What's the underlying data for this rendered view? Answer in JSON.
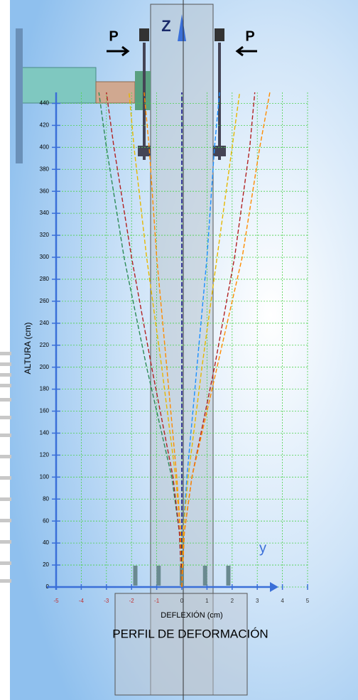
{
  "chart_data": {
    "type": "line",
    "title": "PERFIL DE DEFORMACIÓN",
    "xlabel": "DEFLEXIÓN (cm)",
    "ylabel": "ALTURA (cm)",
    "annotations": {
      "load_left": "P",
      "load_right": "P",
      "z_axis": "Z",
      "y_axis": "y"
    },
    "y": [
      0,
      50,
      100,
      200,
      300,
      400,
      450
    ],
    "series": [
      {
        "color": "#2e8b57",
        "values": [
          0,
          -0.1,
          -0.4,
          -1.4,
          -2.3,
          -3.0,
          -3.3
        ]
      },
      {
        "color": "#b22222",
        "values": [
          0,
          -0.1,
          -0.35,
          -1.2,
          -2.0,
          -2.7,
          -3.0
        ]
      },
      {
        "color": "#e6b800",
        "values": [
          0,
          -0.05,
          -0.25,
          -0.8,
          -1.4,
          -1.9,
          -2.1
        ]
      },
      {
        "color": "#ff8c00",
        "values": [
          0,
          -0.05,
          -0.2,
          -0.6,
          -1.0,
          -1.3,
          -1.5
        ]
      },
      {
        "color": "#000080",
        "values": [
          0,
          0,
          0,
          0,
          0,
          0,
          0
        ]
      },
      {
        "color": "#1e90ff",
        "values": [
          0,
          0.05,
          0.2,
          0.6,
          1.0,
          1.3,
          1.5
        ]
      },
      {
        "color": "#e6b800",
        "values": [
          0,
          0.05,
          0.25,
          0.8,
          1.4,
          2.0,
          2.3
        ]
      },
      {
        "color": "#b22222",
        "values": [
          0,
          0.1,
          0.4,
          1.3,
          2.1,
          2.7,
          2.9
        ]
      },
      {
        "color": "#ff8c00",
        "values": [
          0,
          0.1,
          0.4,
          1.4,
          2.4,
          3.1,
          3.5
        ]
      }
    ],
    "xlim": [
      -5,
      5
    ],
    "xticks": [
      -5,
      -4,
      -3,
      -2,
      -1,
      0,
      1,
      2,
      3,
      4,
      5
    ],
    "ylim": [
      0,
      450
    ],
    "yticks": [
      0,
      20,
      40,
      60,
      80,
      100,
      120,
      140,
      160,
      180,
      200,
      220,
      240,
      260,
      280,
      300,
      320,
      340,
      360,
      380,
      400,
      420,
      440
    ],
    "grid": true,
    "grid_color": "#4cd24c",
    "axis_color": "#3a6fd8"
  }
}
